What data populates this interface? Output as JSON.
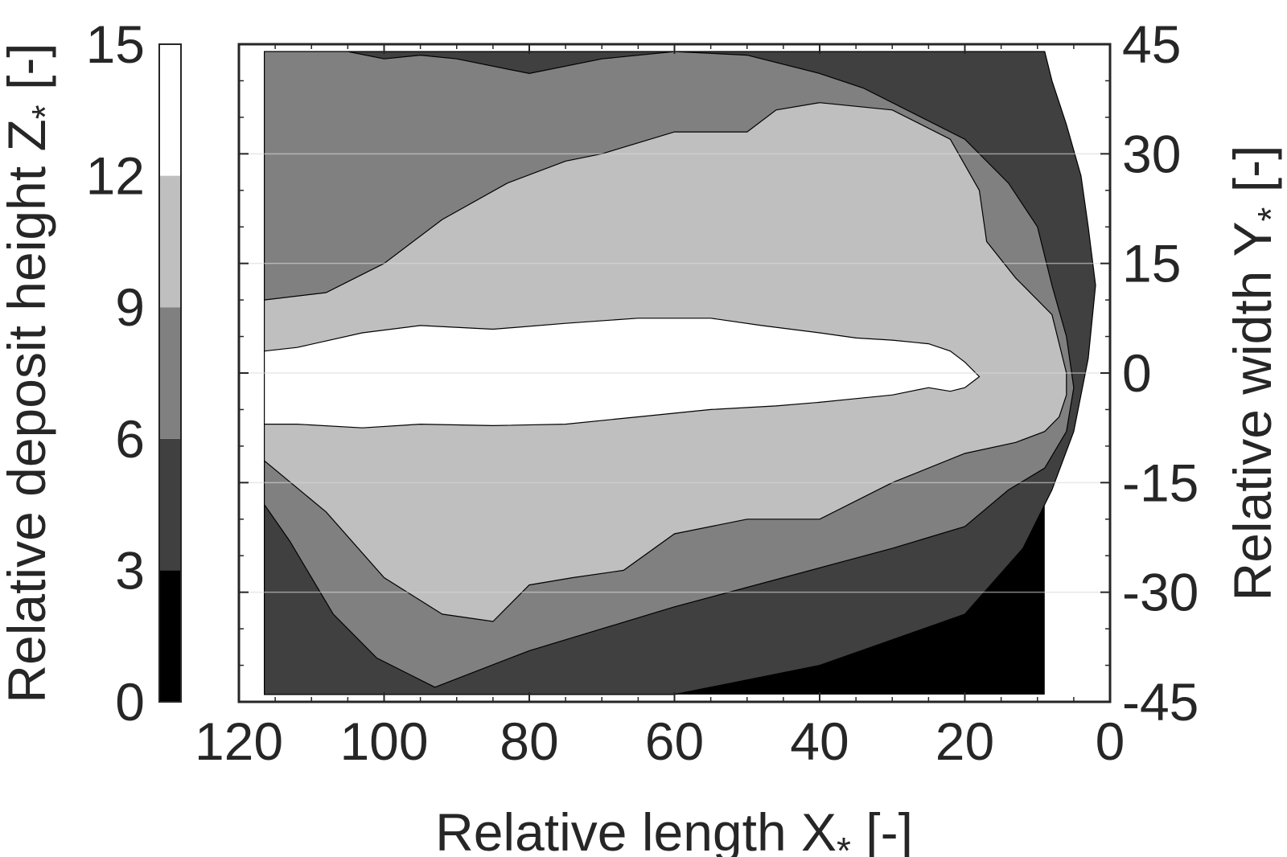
{
  "chart_data": {
    "type": "heatmap",
    "subtype": "filled-contour",
    "xlabel": "Relative length X",
    "xlabel_sub": "*",
    "xlabel_unit": " [-]",
    "ylabel": "Relative width Y",
    "ylabel_sub": "*",
    "ylabel_unit": " [-]",
    "colorbar_label": "Relative deposit height Z",
    "colorbar_sub": "*",
    "colorbar_unit": " [-]",
    "xlim": [
      120,
      0
    ],
    "ylim": [
      -45,
      45
    ],
    "x_reversed": true,
    "y_axis_side": "right",
    "xticks": [
      120,
      100,
      80,
      60,
      40,
      20,
      0
    ],
    "yticks": [
      45,
      30,
      15,
      0,
      -15,
      -30,
      -45
    ],
    "levels": [
      0,
      3,
      6,
      9,
      12,
      15
    ],
    "level_colors": [
      "#000000",
      "#404040",
      "#808080",
      "#bfbfbf",
      "#ffffff"
    ],
    "colorbar_ticks": [
      15,
      12,
      9,
      6,
      3,
      0
    ],
    "grid": true,
    "contour_regions": [
      {
        "level_band": [
          3,
          6
        ],
        "x": [
          116.5,
          9,
          8,
          6,
          4,
          3,
          2,
          3,
          5,
          8,
          12,
          20,
          40,
          60,
          80,
          100,
          116.5
        ],
        "y": [
          44,
          44,
          40,
          34,
          27,
          20,
          12,
          2,
          -8,
          -16,
          -24,
          -33,
          -40,
          -44,
          -44,
          -44,
          -44
        ]
      },
      {
        "level_band": [
          6,
          9
        ],
        "x": [
          116.5,
          105,
          100,
          95,
          90,
          80,
          70,
          60,
          50,
          40,
          34,
          20,
          14,
          10,
          8,
          6,
          5,
          6,
          9,
          14,
          20,
          30,
          45,
          60,
          80,
          93,
          101,
          107,
          113,
          116.5
        ],
        "y": [
          44,
          44,
          43,
          43.5,
          43,
          41,
          43,
          44,
          43.5,
          41,
          39,
          32,
          26,
          20,
          12,
          5,
          -2,
          -8,
          -13,
          -16,
          -21,
          -24,
          -28,
          -32,
          -38,
          -43,
          -39,
          -33,
          -23,
          -18
        ]
      },
      {
        "level_band": [
          9,
          12
        ],
        "x": [
          116.5,
          108,
          100,
          92,
          83,
          75,
          70,
          60,
          50,
          46,
          40,
          30,
          22,
          18,
          17,
          13,
          8,
          7,
          6,
          6,
          7,
          9,
          13,
          20,
          30,
          40,
          50,
          60,
          67,
          74,
          80,
          85,
          92,
          100,
          108,
          116.5
        ],
        "y": [
          10,
          11,
          15,
          21,
          26,
          29,
          30,
          33,
          33,
          36,
          37,
          36,
          32,
          25,
          18,
          13,
          8,
          4,
          0,
          -3,
          -6,
          -8,
          -9.5,
          -11,
          -15,
          -20,
          -20,
          -22,
          -27,
          -28,
          -29,
          -34,
          -33,
          -28,
          -19,
          -12
        ]
      },
      {
        "level_band": [
          12,
          15
        ],
        "x": [
          116.5,
          112,
          103,
          95,
          85,
          75,
          65,
          55,
          48,
          40,
          35,
          30,
          25,
          22,
          20,
          18,
          20,
          22,
          25,
          30,
          35,
          40,
          46,
          55,
          65,
          75,
          85,
          95,
          103,
          112,
          116.5
        ],
        "y": [
          3,
          3.5,
          5.5,
          6.5,
          6,
          6.8,
          7.5,
          7.5,
          6.5,
          5.5,
          4.8,
          4.5,
          4,
          3,
          1.5,
          -0.5,
          -2,
          -2.5,
          -2,
          -3,
          -3.5,
          -4,
          -4.5,
          -5,
          -6,
          -7,
          -7.2,
          -7,
          -7.5,
          -7,
          -7
        ]
      }
    ]
  }
}
